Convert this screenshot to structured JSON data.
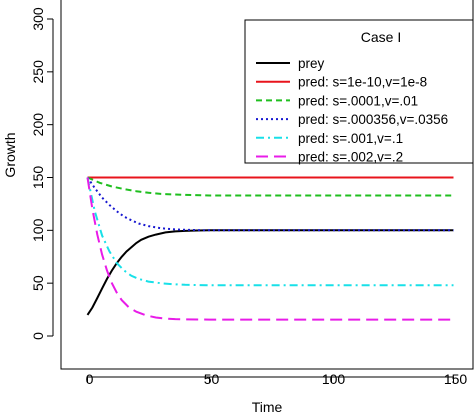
{
  "chart_data": {
    "type": "line",
    "title": "",
    "xlabel": "Time",
    "ylabel": "Growth",
    "xlim": [
      -5,
      155
    ],
    "ylim": [
      -10,
      310
    ],
    "xticks": [
      0,
      50,
      100,
      150
    ],
    "xtick_labels": [
      "0",
      "50",
      "100",
      "150"
    ],
    "yticks": [
      0,
      50,
      100,
      150,
      200,
      250,
      300
    ],
    "ytick_labels": [
      "0",
      "50",
      "100",
      "150",
      "200",
      "250",
      "300"
    ],
    "grid": false,
    "legend": {
      "title": "Case I",
      "position": "top-right"
    },
    "series": [
      {
        "name": "prey",
        "color": "#000000",
        "dash": "solid",
        "x": [
          0,
          2,
          4,
          6,
          8,
          10,
          12,
          14,
          16,
          18,
          20,
          22,
          25,
          28,
          32,
          36,
          40,
          45,
          50,
          60,
          70,
          80,
          90,
          100,
          110,
          120,
          130,
          140,
          150
        ],
        "y": [
          20,
          27,
          36,
          45,
          54,
          62,
          69,
          75,
          80,
          84,
          88,
          91,
          94,
          96,
          98,
          99,
          99.5,
          99.8,
          100,
          100,
          100,
          100,
          100,
          100,
          100,
          100,
          100,
          100,
          100
        ]
      },
      {
        "name": "pred: s=1e-10,v=1e-8",
        "color": "#e8141c",
        "dash": "solid",
        "x": [
          0,
          150
        ],
        "y": [
          150,
          150
        ]
      },
      {
        "name": "pred: s=.0001,v=.01",
        "color": "#1fbf1f",
        "dash": "dashed",
        "x": [
          0,
          5,
          10,
          15,
          20,
          25,
          30,
          35,
          40,
          50,
          60,
          80,
          100,
          120,
          150
        ],
        "y": [
          150,
          145,
          141.5,
          139,
          137,
          135.5,
          134.5,
          134,
          133.5,
          133,
          133,
          133,
          133,
          133,
          133
        ]
      },
      {
        "name": "pred: s=.000356,v=.0356",
        "color": "#1818d0",
        "dash": "dotted",
        "x": [
          0,
          3,
          6,
          9,
          12,
          15,
          18,
          21,
          25,
          30,
          35,
          40,
          45,
          50,
          60,
          80,
          100,
          120,
          150
        ],
        "y": [
          150,
          140,
          131,
          124,
          118,
          113,
          109.5,
          106.5,
          104,
          102,
          101,
          100.5,
          100.2,
          100,
          100,
          100,
          100,
          100,
          100
        ]
      },
      {
        "name": "pred: s=.001,v=.1",
        "color": "#18e0e8",
        "dash": "dashdot",
        "x": [
          0,
          3,
          6,
          9,
          12,
          15,
          18,
          21,
          25,
          30,
          35,
          40,
          50,
          60,
          80,
          100,
          120,
          150
        ],
        "y": [
          150,
          118,
          95,
          80,
          69,
          62,
          57,
          54,
          51.5,
          50,
          49,
          48.5,
          48,
          48,
          48,
          48,
          48,
          48
        ]
      },
      {
        "name": "pred: s=.002,v=.2",
        "color": "#e81ce8",
        "dash": "longdash",
        "x": [
          0,
          2,
          4,
          6,
          8,
          10,
          12,
          14,
          17,
          20,
          24,
          28,
          32,
          36,
          40,
          50,
          60,
          80,
          100,
          120,
          150
        ],
        "y": [
          150,
          120,
          96,
          77,
          62,
          50,
          41,
          34,
          27,
          23,
          19.5,
          17.5,
          16.5,
          16,
          15.8,
          15.5,
          15.5,
          15.5,
          15.5,
          15.5,
          15.5
        ]
      }
    ]
  }
}
